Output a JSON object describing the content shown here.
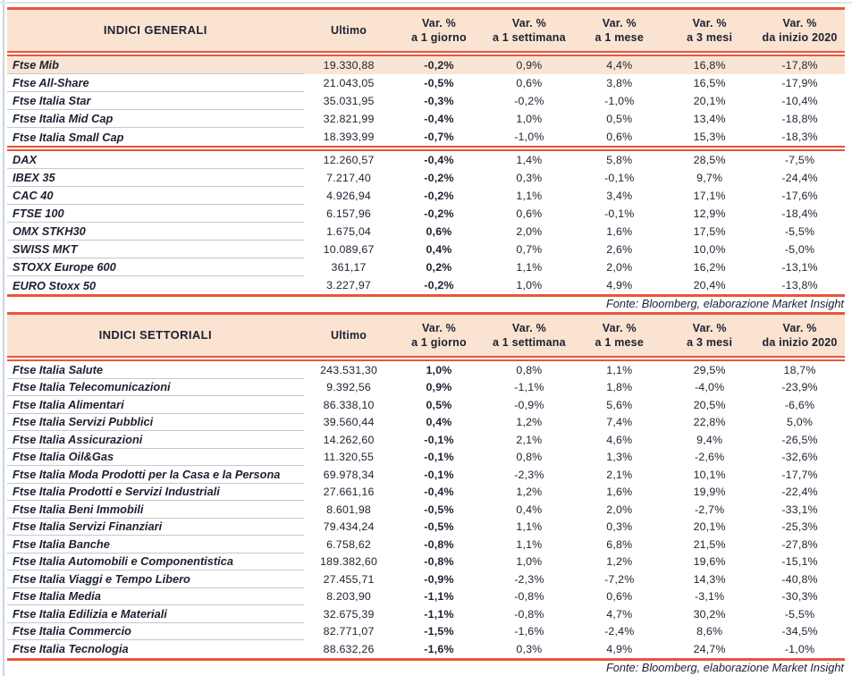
{
  "colors": {
    "accent_red": "#e8553c",
    "header_bg": "#fae3d1",
    "highlight_bg": "#fae5d4",
    "separator": "#c6c8ca",
    "text": "#1c2130"
  },
  "source_note": "Fonte: Bloomberg, elaborazione Market Insight",
  "header_cols": {
    "ultimo": "Ultimo",
    "var_cols": [
      {
        "line1": "Var. %",
        "line2": "a 1 giorno"
      },
      {
        "line1": "Var. %",
        "line2": "a 1 settimana"
      },
      {
        "line1": "Var. %",
        "line2": "a 1 mese"
      },
      {
        "line1": "Var. %",
        "line2": "a 3 mesi"
      },
      {
        "line1": "Var. %",
        "line2": "da inizio 2020"
      }
    ]
  },
  "tables": [
    {
      "title": "INDICI GENERALI",
      "groups": [
        {
          "rows": [
            {
              "name": "Ftse Mib",
              "highlight": true,
              "values": [
                "19.330,88",
                "-0,2%",
                "0,9%",
                "4,4%",
                "16,8%",
                "-17,8%"
              ]
            },
            {
              "name": "Ftse All-Share",
              "values": [
                "21.043,05",
                "-0,5%",
                "0,6%",
                "3,8%",
                "16,5%",
                "-17,9%"
              ]
            },
            {
              "name": "Ftse Italia Star",
              "values": [
                "35.031,95",
                "-0,3%",
                "-0,2%",
                "-1,0%",
                "20,1%",
                "-10,4%"
              ]
            },
            {
              "name": "Ftse Italia Mid Cap",
              "values": [
                "32.821,99",
                "-0,4%",
                "1,0%",
                "0,5%",
                "13,4%",
                "-18,8%"
              ]
            },
            {
              "name": "Ftse Italia Small Cap",
              "values": [
                "18.393,99",
                "-0,7%",
                "-1,0%",
                "0,6%",
                "15,3%",
                "-18,3%"
              ]
            }
          ]
        },
        {
          "rows": [
            {
              "name": "DAX",
              "values": [
                "12.260,57",
                "-0,4%",
                "1,4%",
                "5,8%",
                "28,5%",
                "-7,5%"
              ]
            },
            {
              "name": "IBEX 35",
              "values": [
                "7.217,40",
                "-0,2%",
                "0,3%",
                "-0,1%",
                "9,7%",
                "-24,4%"
              ]
            },
            {
              "name": "CAC 40",
              "values": [
                "4.926,94",
                "-0,2%",
                "1,1%",
                "3,4%",
                "17,1%",
                "-17,6%"
              ]
            },
            {
              "name": "FTSE 100",
              "values": [
                "6.157,96",
                "-0,2%",
                "0,6%",
                "-0,1%",
                "12,9%",
                "-18,4%"
              ]
            },
            {
              "name": "OMX STKH30",
              "values": [
                "1.675,04",
                "0,6%",
                "2,0%",
                "1,6%",
                "17,5%",
                "-5,5%"
              ]
            },
            {
              "name": "SWISS MKT",
              "values": [
                "10.089,67",
                "0,4%",
                "0,7%",
                "2,6%",
                "10,0%",
                "-5,0%"
              ]
            },
            {
              "name": "STOXX Europe 600",
              "values": [
                "361,17",
                "0,2%",
                "1,1%",
                "2,0%",
                "16,2%",
                "-13,1%"
              ]
            },
            {
              "name": "EURO Stoxx 50",
              "values": [
                "3.227,97",
                "-0,2%",
                "1,0%",
                "4,9%",
                "20,4%",
                "-13,8%"
              ]
            }
          ]
        }
      ]
    },
    {
      "title": "INDICI SETTORIALI",
      "groups": [
        {
          "rows": [
            {
              "name": "Ftse Italia Salute",
              "values": [
                "243.531,30",
                "1,0%",
                "0,8%",
                "1,1%",
                "29,5%",
                "18,7%"
              ]
            },
            {
              "name": "Ftse Italia Telecomunicazioni",
              "values": [
                "9.392,56",
                "0,9%",
                "-1,1%",
                "1,8%",
                "-4,0%",
                "-23,9%"
              ]
            },
            {
              "name": "Ftse Italia Alimentari",
              "values": [
                "86.338,10",
                "0,5%",
                "-0,9%",
                "5,6%",
                "20,5%",
                "-6,6%"
              ]
            },
            {
              "name": "Ftse Italia Servizi Pubblici",
              "values": [
                "39.560,44",
                "0,4%",
                "1,2%",
                "7,4%",
                "22,8%",
                "5,0%"
              ]
            },
            {
              "name": "Ftse Italia Assicurazioni",
              "values": [
                "14.262,60",
                "-0,1%",
                "2,1%",
                "4,6%",
                "9,4%",
                "-26,5%"
              ]
            },
            {
              "name": "Ftse Italia Oil&Gas",
              "values": [
                "11.320,55",
                "-0,1%",
                "0,8%",
                "1,3%",
                "-2,6%",
                "-32,6%"
              ]
            },
            {
              "name": "Ftse Italia Moda Prodotti per la Casa e la Persona",
              "values": [
                "69.978,34",
                "-0,1%",
                "-2,3%",
                "2,1%",
                "10,1%",
                "-17,7%"
              ]
            },
            {
              "name": "Ftse Italia Prodotti e Servizi Industriali",
              "values": [
                "27.661,16",
                "-0,4%",
                "1,2%",
                "1,6%",
                "19,9%",
                "-22,4%"
              ]
            },
            {
              "name": "Ftse Italia Beni Immobili",
              "values": [
                "8.601,98",
                "-0,5%",
                "0,4%",
                "2,0%",
                "-2,7%",
                "-33,1%"
              ]
            },
            {
              "name": "Ftse Italia Servizi Finanziari",
              "values": [
                "79.434,24",
                "-0,5%",
                "1,1%",
                "0,3%",
                "20,1%",
                "-25,3%"
              ]
            },
            {
              "name": "Ftse Italia Banche",
              "values": [
                "6.758,62",
                "-0,8%",
                "1,1%",
                "6,8%",
                "21,5%",
                "-27,8%"
              ]
            },
            {
              "name": "Ftse Italia Automobili e Componentistica",
              "values": [
                "189.382,60",
                "-0,8%",
                "1,0%",
                "1,2%",
                "19,6%",
                "-15,1%"
              ]
            },
            {
              "name": "Ftse Italia Viaggi e Tempo Libero",
              "values": [
                "27.455,71",
                "-0,9%",
                "-2,3%",
                "-7,2%",
                "14,3%",
                "-40,8%"
              ]
            },
            {
              "name": "Ftse Italia Media",
              "values": [
                "8.203,90",
                "-1,1%",
                "-0,8%",
                "0,6%",
                "-3,1%",
                "-30,3%"
              ]
            },
            {
              "name": "Ftse Italia Edilizia e Materiali",
              "values": [
                "32.675,39",
                "-1,1%",
                "-0,8%",
                "4,7%",
                "30,2%",
                "-5,5%"
              ]
            },
            {
              "name": "Ftse Italia Commercio",
              "values": [
                "82.771,07",
                "-1,5%",
                "-1,6%",
                "-2,4%",
                "8,6%",
                "-34,5%"
              ]
            },
            {
              "name": "Ftse Italia Tecnologia",
              "values": [
                "88.632,26",
                "-1,6%",
                "0,3%",
                "4,9%",
                "24,7%",
                "-1,0%"
              ]
            }
          ]
        }
      ]
    }
  ]
}
